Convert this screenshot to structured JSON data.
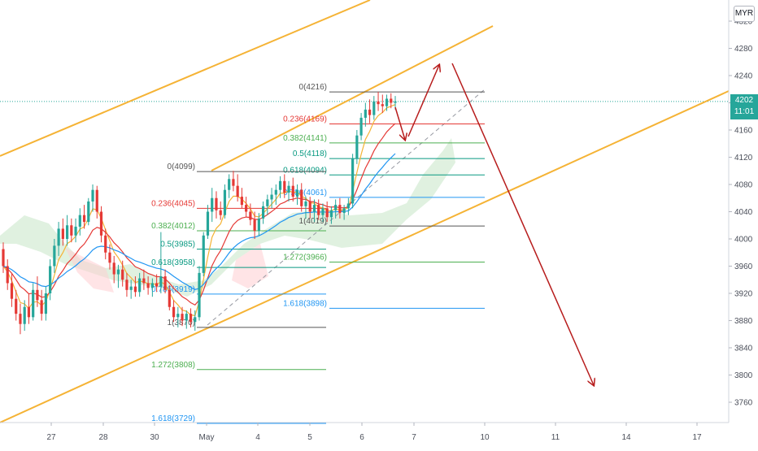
{
  "currency_button": "MYR",
  "last_price": {
    "value": "4202",
    "countdown": "11:01"
  },
  "colors": {
    "up": "#26a69a",
    "down": "#e53935",
    "channel": "#f5b335",
    "arrow": "#b71c1c",
    "ema_fast": "#f5b335",
    "ema_mid": "#e53935",
    "ema_slow": "#2196f3",
    "cloud": "#a5d6a7",
    "cloud_red": "#ffcdd2",
    "fib_gray": "#555555",
    "fib_red": "#e53935",
    "fib_green": "#4caf50",
    "fib_teal": "#089981",
    "fib_blue": "#2196f3"
  },
  "chart_data": {
    "type": "candlestick",
    "symbol_currency": "MYR",
    "y_axis": {
      "ticks": [
        4320,
        4280,
        4240,
        4200,
        4160,
        4120,
        4080,
        4040,
        4000,
        3960,
        3920,
        3880,
        3840,
        3800,
        3760
      ]
    },
    "x_axis": {
      "ticks": [
        "27",
        "28",
        "30",
        "May",
        "4",
        "5",
        "6",
        "7",
        "10",
        "11",
        "14",
        "17"
      ]
    },
    "fib_upper": [
      {
        "label": "0(4216)",
        "price": 4216,
        "color": "#555555"
      },
      {
        "label": "0.236(4169)",
        "price": 4169,
        "color": "#e53935"
      },
      {
        "label": "0.382(4141)",
        "price": 4141,
        "color": "#4caf50"
      },
      {
        "label": "0.5(4118)",
        "price": 4118,
        "color": "#089981"
      },
      {
        "label": "0.618(4094)",
        "price": 4094,
        "color": "#089981"
      },
      {
        "label": "0.786(4061)",
        "price": 4061,
        "color": "#2196f3"
      },
      {
        "label": "1(4019)",
        "price": 4019,
        "color": "#555555"
      },
      {
        "label": "1.272(3966)",
        "price": 3966,
        "color": "#4caf50"
      },
      {
        "label": "1.618(3898)",
        "price": 3898,
        "color": "#2196f3"
      }
    ],
    "fib_lower": [
      {
        "label": "0(4099)",
        "price": 4099,
        "color": "#555555"
      },
      {
        "label": "0.236(4045)",
        "price": 4045,
        "color": "#e53935"
      },
      {
        "label": "0.382(4012)",
        "price": 4012,
        "color": "#4caf50"
      },
      {
        "label": "0.5(3985)",
        "price": 3985,
        "color": "#089981"
      },
      {
        "label": "0.618(3958)",
        "price": 3958,
        "color": "#089981"
      },
      {
        "label": "0.786(3919)",
        "price": 3919,
        "color": "#2196f3"
      },
      {
        "label": "1(3870)",
        "price": 3870,
        "color": "#555555"
      },
      {
        "label": "1.272(3808)",
        "price": 3808,
        "color": "#4caf50"
      },
      {
        "label": "1.618(3729)",
        "price": 3729,
        "color": "#2196f3"
      }
    ],
    "candles": [
      {
        "o": 3985,
        "h": 3995,
        "l": 3950,
        "c": 3960
      },
      {
        "o": 3960,
        "h": 3970,
        "l": 3925,
        "c": 3935
      },
      {
        "o": 3935,
        "h": 3950,
        "l": 3900,
        "c": 3912
      },
      {
        "o": 3912,
        "h": 3925,
        "l": 3880,
        "c": 3890
      },
      {
        "o": 3890,
        "h": 3905,
        "l": 3860,
        "c": 3875
      },
      {
        "o": 3875,
        "h": 3910,
        "l": 3865,
        "c": 3900
      },
      {
        "o": 3900,
        "h": 3920,
        "l": 3875,
        "c": 3885
      },
      {
        "o": 3885,
        "h": 3935,
        "l": 3880,
        "c": 3925
      },
      {
        "o": 3925,
        "h": 3945,
        "l": 3900,
        "c": 3910
      },
      {
        "o": 3910,
        "h": 3925,
        "l": 3880,
        "c": 3890
      },
      {
        "o": 3890,
        "h": 3930,
        "l": 3880,
        "c": 3920
      },
      {
        "o": 3920,
        "h": 3970,
        "l": 3910,
        "c": 3960
      },
      {
        "o": 3960,
        "h": 4000,
        "l": 3950,
        "c": 3990
      },
      {
        "o": 3990,
        "h": 4025,
        "l": 3975,
        "c": 4015
      },
      {
        "o": 4015,
        "h": 4030,
        "l": 3990,
        "c": 4000
      },
      {
        "o": 4000,
        "h": 4035,
        "l": 3990,
        "c": 4020
      },
      {
        "o": 4020,
        "h": 4030,
        "l": 3995,
        "c": 4005
      },
      {
        "o": 4005,
        "h": 4030,
        "l": 3995,
        "c": 4018
      },
      {
        "o": 4018,
        "h": 4045,
        "l": 4005,
        "c": 4035
      },
      {
        "o": 4035,
        "h": 4050,
        "l": 4015,
        "c": 4025
      },
      {
        "o": 4025,
        "h": 4060,
        "l": 4020,
        "c": 4055
      },
      {
        "o": 4055,
        "h": 4080,
        "l": 4040,
        "c": 4072
      },
      {
        "o": 4072,
        "h": 4078,
        "l": 4030,
        "c": 4040
      },
      {
        "o": 4040,
        "h": 4048,
        "l": 3995,
        "c": 4005
      },
      {
        "o": 4005,
        "h": 4015,
        "l": 3970,
        "c": 3980
      },
      {
        "o": 3980,
        "h": 3992,
        "l": 3955,
        "c": 3965
      },
      {
        "o": 3965,
        "h": 3975,
        "l": 3935,
        "c": 3948
      },
      {
        "o": 3948,
        "h": 3962,
        "l": 3928,
        "c": 3955
      },
      {
        "o": 3955,
        "h": 3968,
        "l": 3930,
        "c": 3940
      },
      {
        "o": 3940,
        "h": 3950,
        "l": 3915,
        "c": 3925
      },
      {
        "o": 3925,
        "h": 3940,
        "l": 3912,
        "c": 3930
      },
      {
        "o": 3930,
        "h": 3945,
        "l": 3915,
        "c": 3922
      },
      {
        "o": 3922,
        "h": 3950,
        "l": 3915,
        "c": 3942
      },
      {
        "o": 3942,
        "h": 3955,
        "l": 3925,
        "c": 3935
      },
      {
        "o": 3935,
        "h": 3945,
        "l": 3918,
        "c": 3928
      },
      {
        "o": 3928,
        "h": 3942,
        "l": 3915,
        "c": 3935
      },
      {
        "o": 3935,
        "h": 3948,
        "l": 3922,
        "c": 3930
      },
      {
        "o": 3930,
        "h": 4010,
        "l": 3920,
        "c": 3945
      },
      {
        "o": 3945,
        "h": 3955,
        "l": 3920,
        "c": 3925
      },
      {
        "o": 3925,
        "h": 3932,
        "l": 3895,
        "c": 3900
      },
      {
        "o": 3900,
        "h": 3910,
        "l": 3878,
        "c": 3885
      },
      {
        "o": 3885,
        "h": 3900,
        "l": 3870,
        "c": 3890
      },
      {
        "o": 3890,
        "h": 3900,
        "l": 3872,
        "c": 3880
      },
      {
        "o": 3880,
        "h": 3895,
        "l": 3868,
        "c": 3890
      },
      {
        "o": 3890,
        "h": 3898,
        "l": 3870,
        "c": 3878
      },
      {
        "o": 3878,
        "h": 3895,
        "l": 3865,
        "c": 3885
      },
      {
        "o": 3885,
        "h": 3960,
        "l": 3880,
        "c": 3950
      },
      {
        "o": 3950,
        "h": 4010,
        "l": 3945,
        "c": 4005
      },
      {
        "o": 4005,
        "h": 4050,
        "l": 4000,
        "c": 4040
      },
      {
        "o": 4040,
        "h": 4075,
        "l": 4025,
        "c": 4060
      },
      {
        "o": 4060,
        "h": 4070,
        "l": 4030,
        "c": 4042
      },
      {
        "o": 4042,
        "h": 4055,
        "l": 4028,
        "c": 4035
      },
      {
        "o": 4035,
        "h": 4080,
        "l": 4030,
        "c": 4072
      },
      {
        "o": 4072,
        "h": 4095,
        "l": 4060,
        "c": 4088
      },
      {
        "o": 4088,
        "h": 4100,
        "l": 4070,
        "c": 4078
      },
      {
        "o": 4078,
        "h": 4095,
        "l": 4055,
        "c": 4062
      },
      {
        "o": 4062,
        "h": 4075,
        "l": 4045,
        "c": 4050
      },
      {
        "o": 4050,
        "h": 4062,
        "l": 4032,
        "c": 4040
      },
      {
        "o": 4040,
        "h": 4052,
        "l": 4020,
        "c": 4028
      },
      {
        "o": 4028,
        "h": 4040,
        "l": 4000,
        "c": 4012
      },
      {
        "o": 4012,
        "h": 4038,
        "l": 4005,
        "c": 4030
      },
      {
        "o": 4030,
        "h": 4055,
        "l": 4022,
        "c": 4048
      },
      {
        "o": 4048,
        "h": 4065,
        "l": 4035,
        "c": 4058
      },
      {
        "o": 4058,
        "h": 4075,
        "l": 4045,
        "c": 4065
      },
      {
        "o": 4065,
        "h": 4080,
        "l": 4050,
        "c": 4072
      },
      {
        "o": 4072,
        "h": 4092,
        "l": 4060,
        "c": 4085
      },
      {
        "o": 4085,
        "h": 4095,
        "l": 4060,
        "c": 4068
      },
      {
        "o": 4068,
        "h": 4085,
        "l": 4055,
        "c": 4078
      },
      {
        "o": 4078,
        "h": 4090,
        "l": 4055,
        "c": 4062
      },
      {
        "o": 4062,
        "h": 4080,
        "l": 4050,
        "c": 4072
      },
      {
        "o": 4072,
        "h": 4082,
        "l": 4040,
        "c": 4048
      },
      {
        "o": 4048,
        "h": 4062,
        "l": 4030,
        "c": 4055
      },
      {
        "o": 4055,
        "h": 4062,
        "l": 4030,
        "c": 4040
      },
      {
        "o": 4040,
        "h": 4058,
        "l": 4025,
        "c": 4050
      },
      {
        "o": 4050,
        "h": 4058,
        "l": 4028,
        "c": 4035
      },
      {
        "o": 4035,
        "h": 4052,
        "l": 4025,
        "c": 4045
      },
      {
        "o": 4045,
        "h": 4055,
        "l": 4025,
        "c": 4032
      },
      {
        "o": 4032,
        "h": 4048,
        "l": 4022,
        "c": 4042
      },
      {
        "o": 4042,
        "h": 4058,
        "l": 4030,
        "c": 4050
      },
      {
        "o": 4050,
        "h": 4060,
        "l": 4030,
        "c": 4038
      },
      {
        "o": 4038,
        "h": 4050,
        "l": 4028,
        "c": 4045
      },
      {
        "o": 4045,
        "h": 4060,
        "l": 4035,
        "c": 4052
      },
      {
        "o": 4052,
        "h": 4125,
        "l": 4045,
        "c": 4118
      },
      {
        "o": 4118,
        "h": 4160,
        "l": 4110,
        "c": 4152
      },
      {
        "o": 4152,
        "h": 4185,
        "l": 4145,
        "c": 4178
      },
      {
        "o": 4178,
        "h": 4200,
        "l": 4165,
        "c": 4190
      },
      {
        "o": 4190,
        "h": 4205,
        "l": 4170,
        "c": 4182
      },
      {
        "o": 4182,
        "h": 4210,
        "l": 4175,
        "c": 4202
      },
      {
        "o": 4202,
        "h": 4216,
        "l": 4188,
        "c": 4198
      },
      {
        "o": 4198,
        "h": 4212,
        "l": 4185,
        "c": 4195
      },
      {
        "o": 4195,
        "h": 4212,
        "l": 4188,
        "c": 4206
      },
      {
        "o": 4206,
        "h": 4214,
        "l": 4192,
        "c": 4200
      },
      {
        "o": 4200,
        "h": 4210,
        "l": 4190,
        "c": 4202
      }
    ]
  }
}
